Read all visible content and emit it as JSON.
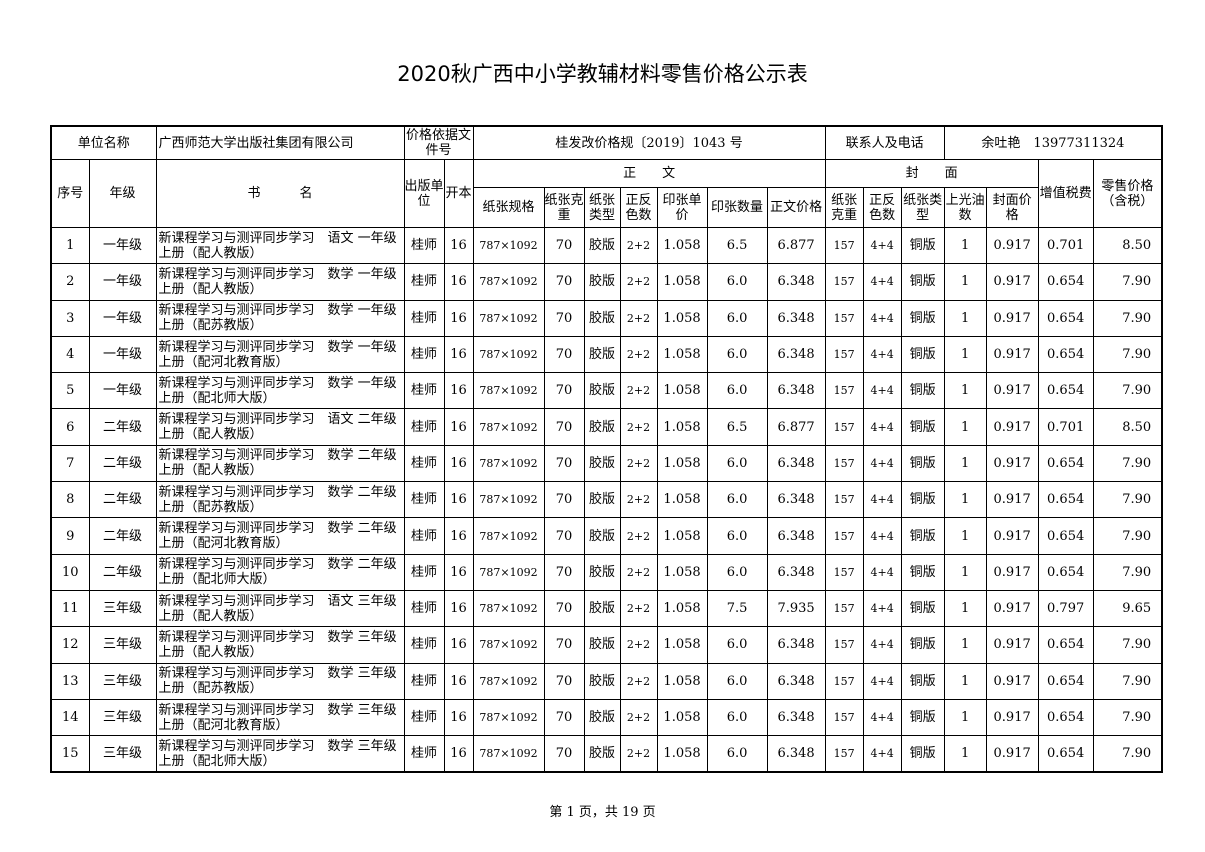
{
  "title": "2020秋广西中小学教辅材料零售价格公示表",
  "info": {
    "unit_label": "单位名称",
    "unit_value": "广西师范大学出版社集团有限公司",
    "basis_label": "价格依据文件号",
    "basis_value": "桂发改价格规〔2019〕1043 号",
    "contact_label": "联系人及电话",
    "contact_value": "余吐艳　13977311324"
  },
  "headers": {
    "seq": "序号",
    "grade": "年级",
    "name": "书　　　名",
    "publisher": "出版单位",
    "format": "开本",
    "body_group": "正　　文",
    "cover_group": "封　　面",
    "paper_size": "纸张规格",
    "paper_weight": "纸张克重",
    "paper_type": "纸张类型",
    "colors": "正反色数",
    "sheet_price": "印张单价",
    "sheet_count": "印张数量",
    "body_price": "正文价格",
    "c_weight": "纸张克重",
    "c_colors": "正反色数",
    "c_type": "纸张类型",
    "c_varnish": "上光油数",
    "c_price": "封面价格",
    "vat": "增值税费",
    "retail": "零售价格（含税）"
  },
  "rows": [
    [
      "1",
      "一年级",
      "新课程学习与测评同步学习　语文 一年级 上册（配人教版）",
      "桂师",
      "16",
      "787×1092",
      "70",
      "胶版",
      "2+2",
      "1.058",
      "6.5",
      "6.877",
      "157",
      "4+4",
      "铜版",
      "1",
      "0.917",
      "0.701",
      "8.50"
    ],
    [
      "2",
      "一年级",
      "新课程学习与测评同步学习　数学 一年级 上册（配人教版）",
      "桂师",
      "16",
      "787×1092",
      "70",
      "胶版",
      "2+2",
      "1.058",
      "6.0",
      "6.348",
      "157",
      "4+4",
      "铜版",
      "1",
      "0.917",
      "0.654",
      "7.90"
    ],
    [
      "3",
      "一年级",
      "新课程学习与测评同步学习　数学 一年级 上册（配苏教版）",
      "桂师",
      "16",
      "787×1092",
      "70",
      "胶版",
      "2+2",
      "1.058",
      "6.0",
      "6.348",
      "157",
      "4+4",
      "铜版",
      "1",
      "0.917",
      "0.654",
      "7.90"
    ],
    [
      "4",
      "一年级",
      "新课程学习与测评同步学习　数学 一年级 上册（配河北教育版）",
      "桂师",
      "16",
      "787×1092",
      "70",
      "胶版",
      "2+2",
      "1.058",
      "6.0",
      "6.348",
      "157",
      "4+4",
      "铜版",
      "1",
      "0.917",
      "0.654",
      "7.90"
    ],
    [
      "5",
      "一年级",
      "新课程学习与测评同步学习　数学 一年级 上册（配北师大版）",
      "桂师",
      "16",
      "787×1092",
      "70",
      "胶版",
      "2+2",
      "1.058",
      "6.0",
      "6.348",
      "157",
      "4+4",
      "铜版",
      "1",
      "0.917",
      "0.654",
      "7.90"
    ],
    [
      "6",
      "二年级",
      "新课程学习与测评同步学习　语文 二年级 上册（配人教版）",
      "桂师",
      "16",
      "787×1092",
      "70",
      "胶版",
      "2+2",
      "1.058",
      "6.5",
      "6.877",
      "157",
      "4+4",
      "铜版",
      "1",
      "0.917",
      "0.701",
      "8.50"
    ],
    [
      "7",
      "二年级",
      "新课程学习与测评同步学习　数学 二年级 上册（配人教版）",
      "桂师",
      "16",
      "787×1092",
      "70",
      "胶版",
      "2+2",
      "1.058",
      "6.0",
      "6.348",
      "157",
      "4+4",
      "铜版",
      "1",
      "0.917",
      "0.654",
      "7.90"
    ],
    [
      "8",
      "二年级",
      "新课程学习与测评同步学习　数学 二年级 上册（配苏教版）",
      "桂师",
      "16",
      "787×1092",
      "70",
      "胶版",
      "2+2",
      "1.058",
      "6.0",
      "6.348",
      "157",
      "4+4",
      "铜版",
      "1",
      "0.917",
      "0.654",
      "7.90"
    ],
    [
      "9",
      "二年级",
      "新课程学习与测评同步学习　数学 二年级 上册（配河北教育版）",
      "桂师",
      "16",
      "787×1092",
      "70",
      "胶版",
      "2+2",
      "1.058",
      "6.0",
      "6.348",
      "157",
      "4+4",
      "铜版",
      "1",
      "0.917",
      "0.654",
      "7.90"
    ],
    [
      "10",
      "二年级",
      "新课程学习与测评同步学习　数学 二年级 上册（配北师大版）",
      "桂师",
      "16",
      "787×1092",
      "70",
      "胶版",
      "2+2",
      "1.058",
      "6.0",
      "6.348",
      "157",
      "4+4",
      "铜版",
      "1",
      "0.917",
      "0.654",
      "7.90"
    ],
    [
      "11",
      "三年级",
      "新课程学习与测评同步学习　语文 三年级 上册（配人教版）",
      "桂师",
      "16",
      "787×1092",
      "70",
      "胶版",
      "2+2",
      "1.058",
      "7.5",
      "7.935",
      "157",
      "4+4",
      "铜版",
      "1",
      "0.917",
      "0.797",
      "9.65"
    ],
    [
      "12",
      "三年级",
      "新课程学习与测评同步学习　数学 三年级 上册（配人教版）",
      "桂师",
      "16",
      "787×1092",
      "70",
      "胶版",
      "2+2",
      "1.058",
      "6.0",
      "6.348",
      "157",
      "4+4",
      "铜版",
      "1",
      "0.917",
      "0.654",
      "7.90"
    ],
    [
      "13",
      "三年级",
      "新课程学习与测评同步学习　数学 三年级 上册（配苏教版）",
      "桂师",
      "16",
      "787×1092",
      "70",
      "胶版",
      "2+2",
      "1.058",
      "6.0",
      "6.348",
      "157",
      "4+4",
      "铜版",
      "1",
      "0.917",
      "0.654",
      "7.90"
    ],
    [
      "14",
      "三年级",
      "新课程学习与测评同步学习　数学 三年级 上册（配河北教育版）",
      "桂师",
      "16",
      "787×1092",
      "70",
      "胶版",
      "2+2",
      "1.058",
      "6.0",
      "6.348",
      "157",
      "4+4",
      "铜版",
      "1",
      "0.917",
      "0.654",
      "7.90"
    ],
    [
      "15",
      "三年级",
      "新课程学习与测评同步学习　数学 三年级 上册（配北师大版）",
      "桂师",
      "16",
      "787×1092",
      "70",
      "胶版",
      "2+2",
      "1.058",
      "6.0",
      "6.348",
      "157",
      "4+4",
      "铜版",
      "1",
      "0.917",
      "0.654",
      "7.90"
    ]
  ],
  "footer": "第 1 页，共 19 页"
}
